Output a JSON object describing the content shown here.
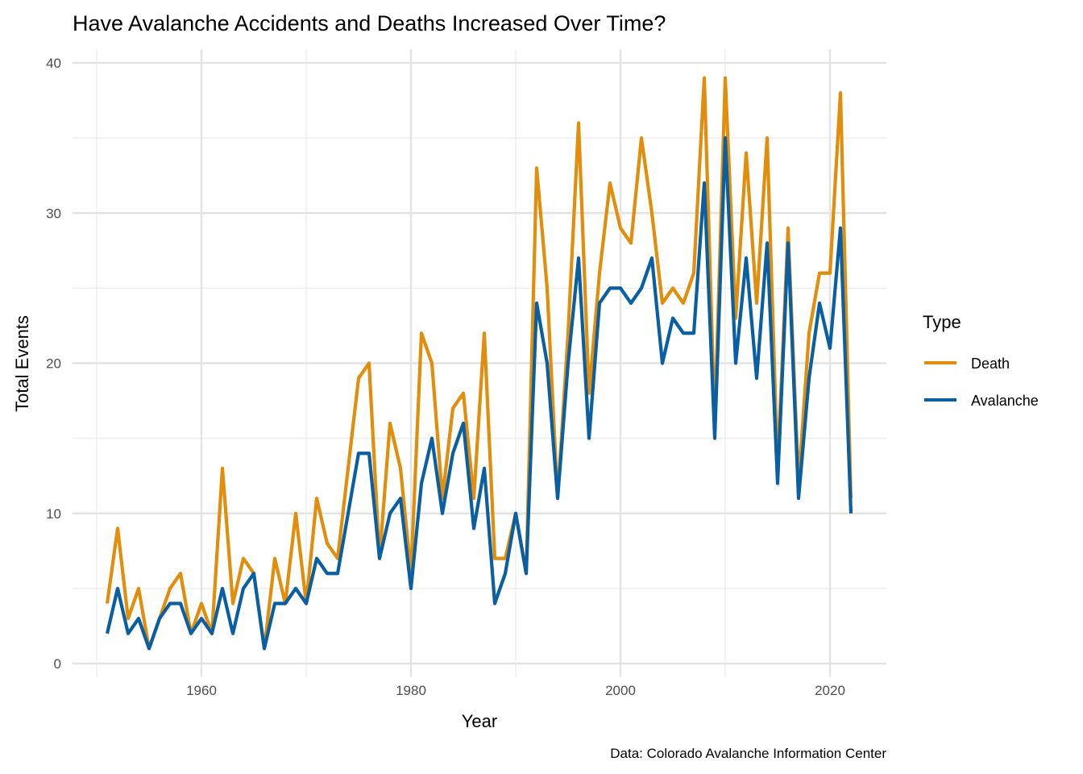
{
  "chart_data": {
    "type": "line",
    "title": "Have Avalanche Accidents and Deaths Increased Over Time?",
    "xlabel": "Year",
    "ylabel": "Total Events",
    "caption": "Data: Colorado Avalanche Information Center",
    "xlim": [
      1947.6,
      2025.4
    ],
    "ylim": [
      -0.9,
      40.9
    ],
    "xticks": [
      1960,
      1980,
      2000,
      2020
    ],
    "yticks": [
      0,
      10,
      20,
      30,
      40
    ],
    "grid": true,
    "legend": {
      "title": "Type",
      "placement": "right"
    },
    "x": [
      1951,
      1952,
      1953,
      1954,
      1955,
      1956,
      1957,
      1958,
      1959,
      1960,
      1961,
      1962,
      1963,
      1964,
      1965,
      1966,
      1967,
      1968,
      1969,
      1970,
      1971,
      1972,
      1973,
      1974,
      1975,
      1976,
      1977,
      1978,
      1979,
      1980,
      1981,
      1982,
      1983,
      1984,
      1985,
      1986,
      1987,
      1988,
      1989,
      1990,
      1991,
      1992,
      1993,
      1994,
      1995,
      1996,
      1997,
      1998,
      1999,
      2000,
      2001,
      2002,
      2003,
      2004,
      2005,
      2006,
      2007,
      2008,
      2009,
      2010,
      2011,
      2012,
      2013,
      2014,
      2015,
      2016,
      2017,
      2018,
      2019,
      2020,
      2021,
      2022
    ],
    "series": [
      {
        "name": "Death",
        "color": "#E08E0B",
        "values": [
          4,
          9,
          3,
          5,
          1,
          3,
          5,
          6,
          2,
          4,
          2,
          13,
          4,
          7,
          6,
          1,
          7,
          4,
          10,
          4,
          11,
          8,
          7,
          13,
          19,
          20,
          7,
          16,
          13,
          6,
          22,
          20,
          11,
          17,
          18,
          11,
          22,
          7,
          7,
          10,
          6,
          33,
          25,
          11,
          22,
          36,
          18,
          26,
          32,
          29,
          28,
          35,
          30,
          24,
          25,
          24,
          26,
          39,
          16,
          39,
          23,
          34,
          24,
          35,
          13,
          29,
          12,
          22,
          26,
          26,
          38,
          11
        ]
      },
      {
        "name": "Avalanche",
        "color": "#0A5FA3",
        "values": [
          2,
          5,
          2,
          3,
          1,
          3,
          4,
          4,
          2,
          3,
          2,
          5,
          2,
          5,
          6,
          1,
          4,
          4,
          5,
          4,
          7,
          6,
          6,
          10,
          14,
          14,
          7,
          10,
          11,
          5,
          12,
          15,
          10,
          14,
          16,
          9,
          13,
          4,
          6,
          10,
          6,
          24,
          20,
          11,
          20,
          27,
          15,
          24,
          25,
          25,
          24,
          25,
          27,
          20,
          23,
          22,
          22,
          32,
          15,
          35,
          20,
          27,
          19,
          28,
          12,
          28,
          11,
          19,
          24,
          21,
          29,
          10
        ]
      }
    ]
  }
}
